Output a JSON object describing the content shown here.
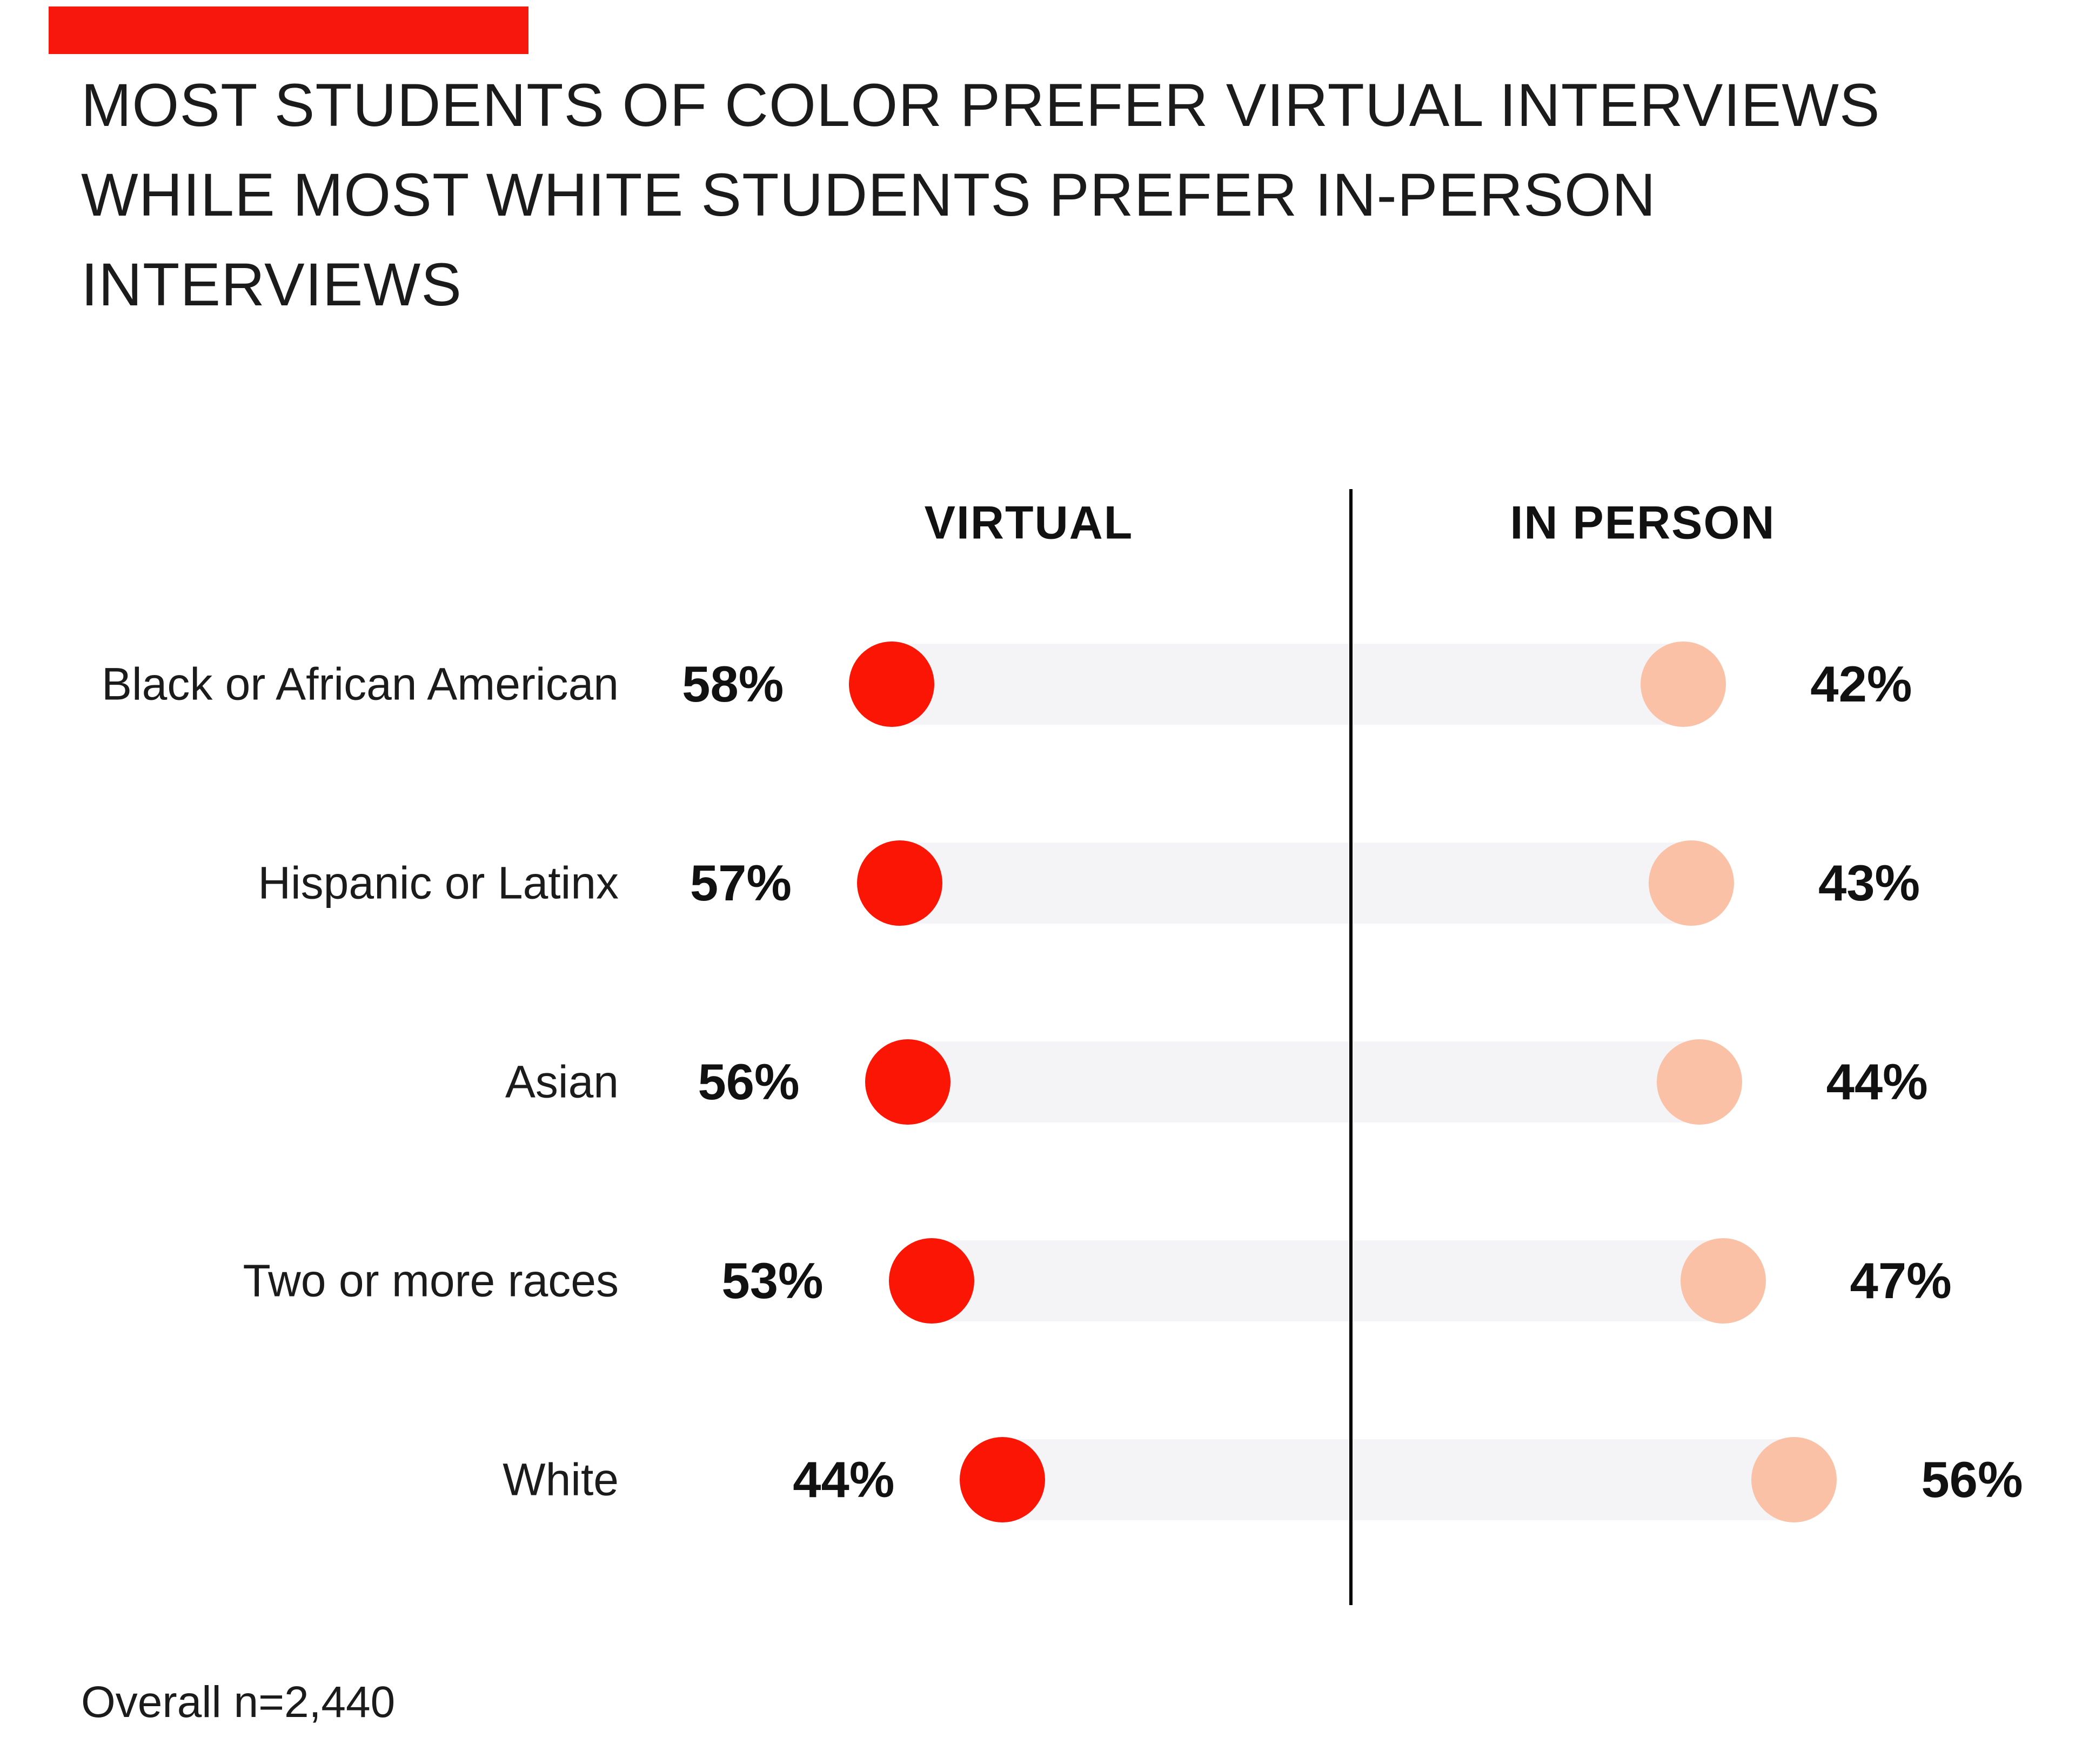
{
  "accent_bar": {
    "color": "#F8170C"
  },
  "title": {
    "lines": [
      "MOST STUDENTS OF COLOR PREFER VIRTUAL INTERVIEWS",
      "WHILE MOST WHITE STUDENTS PREFER IN-PERSON",
      "INTERVIEWS"
    ],
    "color": "#1b1b1b"
  },
  "column_headers": {
    "virtual": "VIRTUAL",
    "in_person": "IN PERSON"
  },
  "footer": {
    "note": "Overall n=2,440"
  },
  "colors": {
    "virtual_dot": "#FA1505",
    "in_person_dot": "#FBC1A6",
    "track": "#F4F4F6",
    "divider": "#000000",
    "text": "#1b1b1b"
  },
  "chart_data": {
    "type": "dumbbell",
    "title": "MOST STUDENTS OF COLOR PREFER VIRTUAL INTERVIEWS WHILE MOST WHITE STUDENTS PREFER IN-PERSON INTERVIEWS",
    "categories": [
      "Black or African American",
      "Hispanic or Latinx",
      "Asian",
      "Two or more races",
      "White"
    ],
    "series": [
      {
        "name": "VIRTUAL",
        "values": [
          58,
          57,
          56,
          53,
          44
        ]
      },
      {
        "name": "IN PERSON",
        "values": [
          42,
          43,
          44,
          47,
          56
        ]
      }
    ],
    "unit": "%",
    "value_labels": true,
    "grid": false,
    "legend_position": "column headers above chart, split by central vertical divider",
    "layout": {
      "orientation": "horizontal",
      "virtual_side": "left of divider",
      "in_person_side": "right of divider"
    },
    "annotations": [
      "Overall n=2,440"
    ]
  }
}
